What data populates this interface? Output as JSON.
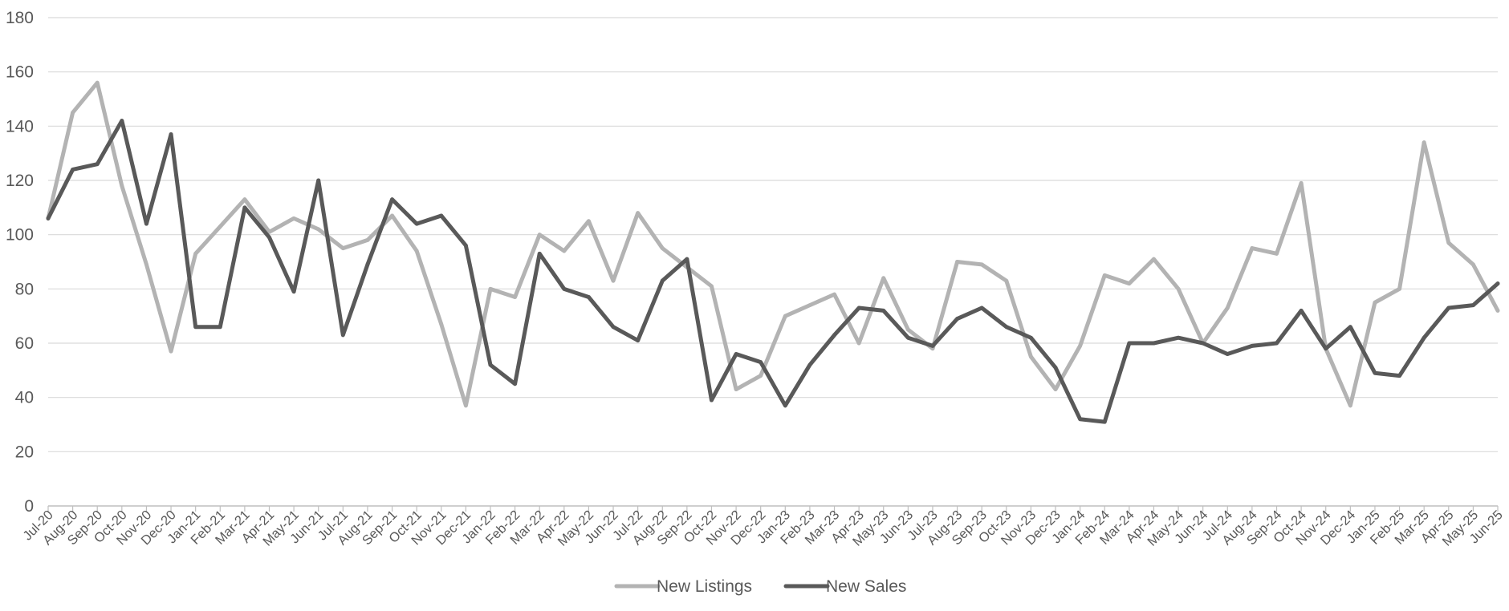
{
  "chart_data": {
    "type": "line",
    "title": "",
    "xlabel": "",
    "ylabel": "",
    "ylim": [
      0,
      180
    ],
    "yticks": [
      0,
      20,
      40,
      60,
      80,
      100,
      120,
      140,
      160,
      180
    ],
    "grid": true,
    "legend_position": "bottom-center",
    "categories": [
      "Jul-20",
      "Aug-20",
      "Sep-20",
      "Oct-20",
      "Nov-20",
      "Dec-20",
      "Jan-21",
      "Feb-21",
      "Mar-21",
      "Apr-21",
      "May-21",
      "Jun-21",
      "Jul-21",
      "Aug-21",
      "Sep-21",
      "Oct-21",
      "Nov-21",
      "Dec-21",
      "Jan-22",
      "Feb-22",
      "Mar-22",
      "Apr-22",
      "May-22",
      "Jun-22",
      "Jul-22",
      "Aug-22",
      "Sep-22",
      "Oct-22",
      "Nov-22",
      "Dec-22",
      "Jan-23",
      "Feb-23",
      "Mar-23",
      "Apr-23",
      "May-23",
      "Jun-23",
      "Jul-23",
      "Aug-23",
      "Sep-23",
      "Oct-23",
      "Nov-23",
      "Dec-23",
      "Jan-24",
      "Feb-24",
      "Mar-24",
      "Apr-24",
      "May-24",
      "Jun-24",
      "Jul-24",
      "Aug-24",
      "Sep-24",
      "Oct-24",
      "Nov-24",
      "Dec-24",
      "Jan-25",
      "Feb-25",
      "Mar-25",
      "Apr-25",
      "May-25",
      "Jun-25"
    ],
    "series": [
      {
        "name": "New Listings",
        "color": "#b3b3b3",
        "values": [
          106,
          145,
          156,
          118,
          89,
          57,
          93,
          103,
          113,
          101,
          106,
          102,
          95,
          98,
          107,
          94,
          67,
          37,
          80,
          77,
          100,
          94,
          105,
          83,
          108,
          95,
          88,
          81,
          43,
          48,
          70,
          74,
          78,
          60,
          84,
          65,
          58,
          90,
          89,
          83,
          55,
          43,
          59,
          85,
          82,
          91,
          80,
          60,
          73,
          95,
          93,
          119,
          58,
          37,
          75,
          80,
          134,
          97,
          89,
          72
        ]
      },
      {
        "name": "New Sales",
        "color": "#595959",
        "values": [
          106,
          124,
          126,
          142,
          104,
          137,
          66,
          66,
          110,
          99,
          79,
          120,
          63,
          89,
          113,
          104,
          107,
          96,
          52,
          45,
          93,
          80,
          77,
          66,
          61,
          83,
          91,
          39,
          56,
          53,
          37,
          52,
          63,
          73,
          72,
          62,
          59,
          69,
          73,
          66,
          62,
          51,
          32,
          31,
          60,
          60,
          62,
          60,
          56,
          59,
          60,
          72,
          58,
          66,
          49,
          48,
          62,
          73,
          74,
          82
        ]
      }
    ]
  }
}
